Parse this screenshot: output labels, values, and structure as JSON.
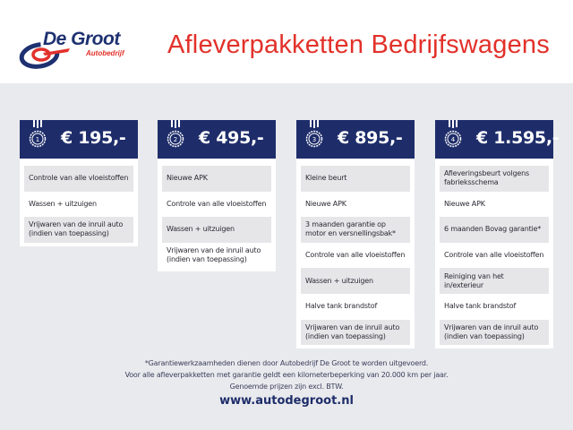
{
  "brand": {
    "name": "De Groot",
    "subtitle": "Autobedrijf",
    "primary_color": "#1e2d6a",
    "accent_color": "#e2312a"
  },
  "title": "Afleverpakketten Bedrijfswagens",
  "packages": [
    {
      "number": "1",
      "price": "€ 195,-",
      "items": [
        "Controle van alle vloeistoffen",
        "Wassen + uitzuigen",
        "Vrijwaren van de inruil auto (indien van toepassing)"
      ]
    },
    {
      "number": "2",
      "price": "€ 495,-",
      "items": [
        "Nieuwe APK",
        "Controle van alle vloeistoffen",
        "Wassen + uitzuigen",
        "Vrijwaren van de inruil auto (indien van toepassing)"
      ]
    },
    {
      "number": "3",
      "price": "€ 895,-",
      "items": [
        "Kleine beurt",
        "Nieuwe APK",
        "3 maanden garantie op motor en versnellingsbak*",
        "Controle van alle vloeistoffen",
        "Wassen + uitzuigen",
        "Halve tank brandstof",
        "Vrijwaren van de inruil auto (indien van toepassing)"
      ]
    },
    {
      "number": "4",
      "price": "€ 1.595,-",
      "items": [
        "Afleveringsbeurt volgens fabrieksschema",
        "Nieuwe APK",
        "6 maanden Bovag garantie*",
        "Controle van alle vloeistoffen",
        "Reiniging van het in/exterieur",
        "Halve tank brandstof",
        "Vrijwaren van de inruil auto (indien van toepassing)"
      ]
    }
  ],
  "footer": {
    "lines": [
      "*Garantiewerkzaamheden dienen door Autobedrijf De Groot te worden uitgevoerd.",
      "Voor alle afleverpakketten met garantie geldt een kilometerbeperking van 20.000 km per jaar.",
      "Genoemde prijzen zijn excl. BTW."
    ],
    "url": "www.autodegroot.nl"
  }
}
